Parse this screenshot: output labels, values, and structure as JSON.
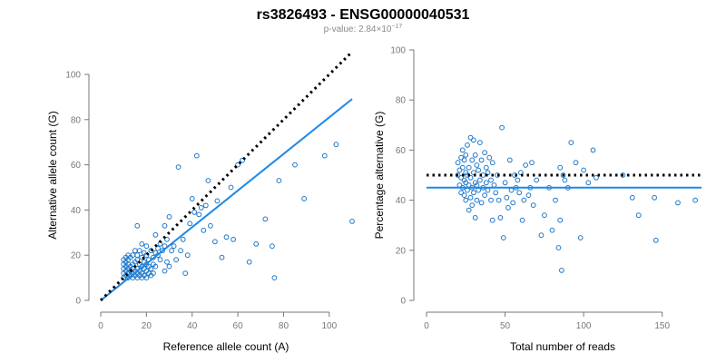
{
  "header": {
    "title": "rs3826493 - ENSG00000040531",
    "pvalue_prefix": "p-value: 2.84×10",
    "pvalue_exponent": "−17"
  },
  "colors": {
    "points": "#1f78c8",
    "fit_line": "#1e88e5",
    "reference_line": "#000000"
  },
  "chart_data": [
    {
      "type": "scatter",
      "xlabel": "Reference allele count (A)",
      "ylabel": "Alternative allele count (G)",
      "xlim": [
        0,
        110
      ],
      "ylim": [
        0,
        100
      ],
      "xticks": [
        0,
        20,
        40,
        60,
        80,
        100
      ],
      "yticks": [
        0,
        20,
        40,
        60,
        80,
        100
      ],
      "grid": false,
      "reference_line": {
        "style": "dotted",
        "slope": 1,
        "intercept": 0,
        "x_range": [
          0,
          110
        ]
      },
      "fit_line": {
        "style": "solid",
        "slope": 0.81,
        "intercept": 0,
        "x_range": [
          0,
          110
        ]
      },
      "points": [
        [
          10,
          10
        ],
        [
          10,
          12
        ],
        [
          10,
          14
        ],
        [
          10,
          16
        ],
        [
          10,
          18
        ],
        [
          11,
          11
        ],
        [
          11,
          13
        ],
        [
          11,
          15
        ],
        [
          11,
          17
        ],
        [
          11,
          19
        ],
        [
          12,
          10
        ],
        [
          12,
          12
        ],
        [
          12,
          14
        ],
        [
          12,
          16
        ],
        [
          12,
          18
        ],
        [
          12,
          20
        ],
        [
          13,
          11
        ],
        [
          13,
          13
        ],
        [
          13,
          15
        ],
        [
          13,
          19
        ],
        [
          14,
          10
        ],
        [
          14,
          12
        ],
        [
          14,
          14
        ],
        [
          14,
          16
        ],
        [
          14,
          20
        ],
        [
          15,
          11
        ],
        [
          15,
          13
        ],
        [
          15,
          17
        ],
        [
          15,
          22
        ],
        [
          16,
          10
        ],
        [
          16,
          12
        ],
        [
          16,
          14
        ],
        [
          16,
          18
        ],
        [
          16,
          20
        ],
        [
          16,
          33
        ],
        [
          17,
          11
        ],
        [
          17,
          13
        ],
        [
          17,
          16
        ],
        [
          17,
          22
        ],
        [
          18,
          10
        ],
        [
          18,
          12
        ],
        [
          18,
          15
        ],
        [
          18,
          19
        ],
        [
          18,
          25
        ],
        [
          19,
          11
        ],
        [
          19,
          14
        ],
        [
          19,
          17
        ],
        [
          19,
          21
        ],
        [
          20,
          10
        ],
        [
          20,
          13
        ],
        [
          20,
          16
        ],
        [
          20,
          20
        ],
        [
          20,
          24
        ],
        [
          21,
          12
        ],
        [
          21,
          15
        ],
        [
          21,
          18
        ],
        [
          22,
          11
        ],
        [
          22,
          14
        ],
        [
          22,
          22
        ],
        [
          23,
          12
        ],
        [
          23,
          16
        ],
        [
          23,
          19
        ],
        [
          24,
          15
        ],
        [
          24,
          21
        ],
        [
          24,
          29
        ],
        [
          25,
          20
        ],
        [
          25,
          23
        ],
        [
          26,
          18
        ],
        [
          26,
          25
        ],
        [
          27,
          22
        ],
        [
          28,
          13
        ],
        [
          28,
          24
        ],
        [
          28,
          33
        ],
        [
          29,
          17
        ],
        [
          29,
          27
        ],
        [
          30,
          15
        ],
        [
          30,
          37
        ],
        [
          31,
          22
        ],
        [
          32,
          24
        ],
        [
          33,
          18
        ],
        [
          34,
          59
        ],
        [
          35,
          22
        ],
        [
          36,
          27
        ],
        [
          37,
          12
        ],
        [
          38,
          20
        ],
        [
          39,
          34
        ],
        [
          40,
          45
        ],
        [
          41,
          39
        ],
        [
          42,
          64
        ],
        [
          43,
          38
        ],
        [
          44,
          41
        ],
        [
          45,
          31
        ],
        [
          46,
          42
        ],
        [
          47,
          53
        ],
        [
          48,
          33
        ],
        [
          50,
          26
        ],
        [
          51,
          44
        ],
        [
          53,
          19
        ],
        [
          55,
          28
        ],
        [
          57,
          50
        ],
        [
          58,
          27
        ],
        [
          60,
          60
        ],
        [
          62,
          62
        ],
        [
          65,
          17
        ],
        [
          68,
          25
        ],
        [
          72,
          36
        ],
        [
          75,
          24
        ],
        [
          76,
          10
        ],
        [
          78,
          53
        ],
        [
          85,
          60
        ],
        [
          89,
          45
        ],
        [
          98,
          64
        ],
        [
          103,
          69
        ],
        [
          110,
          35
        ]
      ]
    },
    {
      "type": "scatter",
      "xlabel": "Total number of reads",
      "ylabel": "Percentage alternative (G)",
      "xlim": [
        0,
        175
      ],
      "ylim": [
        0,
        100
      ],
      "xticks": [
        0,
        50,
        100,
        150
      ],
      "yticks": [
        0,
        20,
        40,
        60,
        80,
        100
      ],
      "grid": false,
      "reference_line": {
        "style": "dotted",
        "y": 50
      },
      "fit_line": {
        "style": "solid",
        "y": 45
      },
      "points": [
        [
          20,
          50
        ],
        [
          20,
          55
        ],
        [
          21,
          46
        ],
        [
          21,
          52
        ],
        [
          22,
          43
        ],
        [
          22,
          49
        ],
        [
          22,
          57
        ],
        [
          23,
          45
        ],
        [
          23,
          53
        ],
        [
          23,
          60
        ],
        [
          24,
          42
        ],
        [
          24,
          48
        ],
        [
          24,
          56
        ],
        [
          25,
          40
        ],
        [
          25,
          47
        ],
        [
          25,
          51
        ],
        [
          25,
          58
        ],
        [
          26,
          44
        ],
        [
          26,
          50
        ],
        [
          26,
          62
        ],
        [
          27,
          36
        ],
        [
          27,
          46
        ],
        [
          27,
          53
        ],
        [
          28,
          41
        ],
        [
          28,
          49
        ],
        [
          28,
          65
        ],
        [
          29,
          38
        ],
        [
          29,
          45
        ],
        [
          29,
          56
        ],
        [
          30,
          43
        ],
        [
          30,
          51
        ],
        [
          30,
          64
        ],
        [
          31,
          33
        ],
        [
          31,
          47
        ],
        [
          31,
          58
        ],
        [
          32,
          40
        ],
        [
          32,
          46
        ],
        [
          32,
          54
        ],
        [
          33,
          44
        ],
        [
          33,
          52
        ],
        [
          34,
          48
        ],
        [
          34,
          63
        ],
        [
          35,
          39
        ],
        [
          35,
          56
        ],
        [
          36,
          50
        ],
        [
          36,
          45
        ],
        [
          37,
          42
        ],
        [
          37,
          59
        ],
        [
          38,
          47
        ],
        [
          38,
          53
        ],
        [
          39,
          44
        ],
        [
          39,
          51
        ],
        [
          40,
          57
        ],
        [
          41,
          40
        ],
        [
          41,
          48
        ],
        [
          42,
          32
        ],
        [
          42,
          55
        ],
        [
          43,
          46
        ],
        [
          44,
          43
        ],
        [
          45,
          50
        ],
        [
          46,
          40
        ],
        [
          47,
          33
        ],
        [
          48,
          69
        ],
        [
          49,
          25
        ],
        [
          50,
          47
        ],
        [
          51,
          41
        ],
        [
          52,
          37
        ],
        [
          53,
          56
        ],
        [
          54,
          44
        ],
        [
          55,
          39
        ],
        [
          56,
          50
        ],
        [
          57,
          45
        ],
        [
          58,
          48
        ],
        [
          59,
          43
        ],
        [
          60,
          51
        ],
        [
          61,
          32
        ],
        [
          62,
          40
        ],
        [
          63,
          54
        ],
        [
          65,
          42
        ],
        [
          66,
          45
        ],
        [
          67,
          55
        ],
        [
          68,
          38
        ],
        [
          70,
          48
        ],
        [
          73,
          26
        ],
        [
          75,
          34
        ],
        [
          78,
          45
        ],
        [
          80,
          28
        ],
        [
          82,
          40
        ],
        [
          84,
          21
        ],
        [
          85,
          53
        ],
        [
          85,
          32
        ],
        [
          86,
          12
        ],
        [
          87,
          50
        ],
        [
          88,
          48
        ],
        [
          90,
          45
        ],
        [
          92,
          63
        ],
        [
          95,
          55
        ],
        [
          98,
          25
        ],
        [
          100,
          52
        ],
        [
          103,
          47
        ],
        [
          106,
          60
        ],
        [
          108,
          49
        ],
        [
          125,
          50
        ],
        [
          131,
          41
        ],
        [
          135,
          34
        ],
        [
          145,
          41
        ],
        [
          146,
          24
        ],
        [
          160,
          39
        ],
        [
          171,
          40
        ]
      ]
    }
  ]
}
